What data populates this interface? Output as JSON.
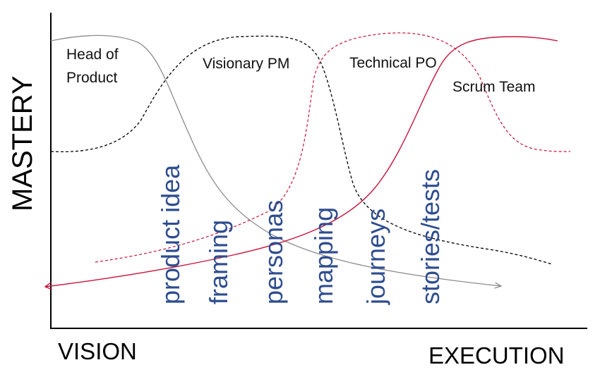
{
  "diagram": {
    "y_axis_label": "MASTERY",
    "x_axis_start_label": "VISION",
    "x_axis_end_label": "EXECUTION",
    "roles": {
      "head_of_product": [
        "Head of",
        "Product"
      ],
      "visionary_pm": "Visionary PM",
      "technical_po": "Technical PO",
      "scrum_team": "Scrum Team"
    },
    "activities": [
      "product idea",
      "framing",
      "personas",
      "mapping",
      "journeys",
      "stories/tests"
    ],
    "colors": {
      "head_of_product_curve": "#8c8c8c",
      "visionary_pm_curve": "#000000",
      "technical_po_curve": "#c8143c",
      "scrum_team_curve": "#c8143c",
      "activity_text": "#2e4d8f"
    }
  }
}
